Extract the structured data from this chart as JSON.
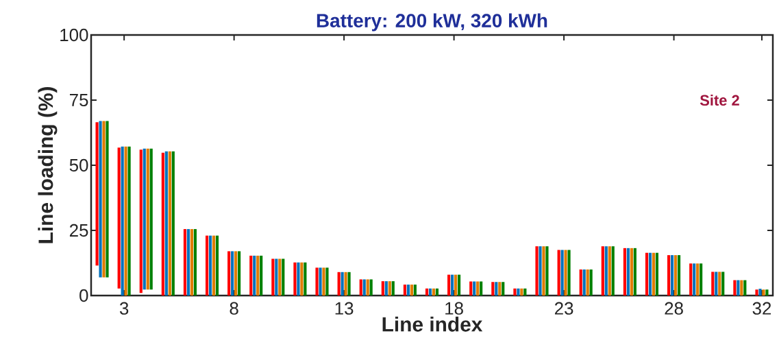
{
  "chart_data": {
    "type": "bar",
    "title": "Battery: 200 kW, 320 kWh",
    "xlabel": "Line index",
    "ylabel": "Line loading (%)",
    "x": [
      2,
      3,
      4,
      5,
      6,
      7,
      8,
      9,
      10,
      11,
      12,
      13,
      14,
      15,
      16,
      17,
      18,
      19,
      20,
      21,
      22,
      23,
      24,
      25,
      26,
      27,
      28,
      29,
      30,
      31,
      32
    ],
    "xlim": [
      1.5,
      32.5
    ],
    "xticks": [
      3,
      8,
      13,
      18,
      23,
      28,
      32
    ],
    "ylim": [
      0,
      100
    ],
    "yticks": [
      0,
      25,
      50,
      75,
      100
    ],
    "annotations": [
      "Site 2"
    ],
    "series": [
      {
        "color": "#ff0000",
        "base": [
          11.5,
          2.7,
          1.0,
          0,
          0,
          0,
          0,
          0,
          0,
          0,
          0,
          0,
          0,
          0,
          0,
          0,
          0,
          0,
          0,
          0,
          0,
          0,
          0,
          0,
          0,
          0,
          0,
          0,
          0,
          0,
          0
        ],
        "values": [
          55,
          54.1,
          55,
          54.8,
          25.5,
          23,
          17,
          15.3,
          14.1,
          12.7,
          10.7,
          9,
          6.2,
          5.5,
          4.2,
          2.7,
          8,
          5.4,
          5.2,
          2.7,
          18.9,
          17.5,
          10,
          18.9,
          18.2,
          16.4,
          15.5,
          12.3,
          9.1,
          5.9,
          2.3
        ]
      },
      {
        "color": "#0072bd",
        "base": [
          7,
          0,
          2.3,
          0,
          0,
          0,
          0,
          0,
          0,
          0,
          0,
          0,
          0,
          0,
          0,
          0,
          0,
          0,
          0,
          0,
          0,
          0,
          0,
          0,
          0,
          0,
          0,
          0,
          0,
          0,
          0
        ],
        "values": [
          60,
          57.2,
          54.1,
          55.3,
          25.5,
          23,
          17,
          15.3,
          14.1,
          12.7,
          10.7,
          9,
          6.2,
          5.5,
          4.2,
          2.7,
          8,
          5.4,
          5.2,
          2.7,
          18.9,
          17.5,
          10,
          18.9,
          18.2,
          16.4,
          15.5,
          12.3,
          9.1,
          5.9,
          2.6
        ]
      },
      {
        "color": "#e07b00",
        "base": [
          7,
          0,
          2.3,
          0,
          0,
          0,
          0,
          0,
          0,
          0,
          0,
          0,
          0,
          0,
          0,
          0,
          0,
          0,
          0,
          0,
          0,
          0,
          0,
          0,
          0,
          0,
          0,
          0,
          0,
          0,
          0
        ],
        "values": [
          60,
          57.2,
          54.1,
          55.3,
          25.5,
          23,
          17,
          15.3,
          14.1,
          12.7,
          10.7,
          9,
          6.2,
          5.5,
          4.2,
          2.7,
          8,
          5.4,
          5.2,
          2.7,
          18.9,
          17.5,
          10,
          18.9,
          18.2,
          16.4,
          15.5,
          12.3,
          9.1,
          5.9,
          2.3
        ]
      },
      {
        "color": "#008000",
        "base": [
          7,
          0,
          2.3,
          0,
          0,
          0,
          0,
          0,
          0,
          0,
          0,
          0,
          0,
          0,
          0,
          0,
          0,
          0,
          0,
          0,
          0,
          0,
          0,
          0,
          0,
          0,
          0,
          0,
          0,
          0,
          0
        ],
        "values": [
          60,
          57.2,
          54.1,
          55.3,
          25.5,
          23,
          17,
          15.3,
          14.1,
          12.7,
          10.7,
          9,
          6.2,
          5.5,
          4.2,
          2.7,
          8,
          5.4,
          5.2,
          2.7,
          18.9,
          17.5,
          10,
          18.9,
          18.2,
          16.4,
          15.5,
          12.3,
          9.1,
          5.9,
          2.3
        ]
      }
    ]
  }
}
